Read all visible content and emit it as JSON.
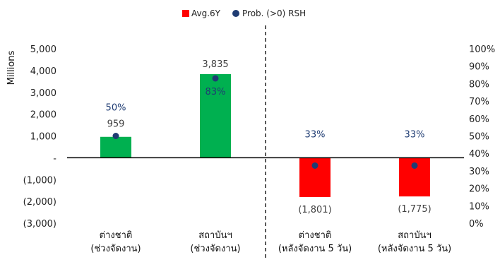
{
  "chart_data": {
    "type": "bar",
    "categories": [
      [
        "ต่างชาติ",
        "(ช่วงจัดงาน)"
      ],
      [
        "สถาบันฯ",
        "(ช่วงจัดงาน)"
      ],
      [
        "ต่างชาติ",
        "(หลังจัดงาน 5 วัน)"
      ],
      [
        "สถาบันฯ",
        "(หลังจัดงาน 5 วัน)"
      ]
    ],
    "series": [
      {
        "name": "Avg.6Y",
        "kind": "bar",
        "axis": "left",
        "values": [
          959,
          3835,
          -1801,
          -1775
        ],
        "labels": [
          "959",
          "3,835",
          "(1,801)",
          "(1,775)"
        ]
      },
      {
        "name": "Prob. (>0) RSH",
        "kind": "point",
        "axis": "right",
        "values": [
          0.5,
          0.83,
          0.33,
          0.33
        ],
        "labels": [
          "50%",
          "83%",
          "33%",
          "33%"
        ]
      }
    ],
    "ylabel": "Millions",
    "ylim": [
      -3000,
      5000
    ],
    "yticks": [
      5000,
      4000,
      3000,
      2000,
      1000,
      0,
      -1000,
      -2000,
      -3000
    ],
    "ytick_labels": [
      "5,000",
      "4,000",
      "3,000",
      "2,000",
      "1,000",
      "-",
      "(1,000)",
      "(2,000)",
      "(3,000)"
    ],
    "y2lim": [
      0,
      1
    ],
    "y2ticks": [
      1,
      0.9,
      0.8,
      0.7,
      0.6,
      0.5,
      0.4,
      0.3,
      0.2,
      0.1,
      0
    ],
    "y2tick_labels": [
      "100%",
      "90%",
      "80%",
      "70%",
      "60%",
      "50%",
      "40%",
      "30%",
      "20%",
      "10%",
      "0%"
    ],
    "legend_position": "top-center",
    "grid": false,
    "divider": "dashed line between second and third category"
  },
  "colors": {
    "bars": [
      "#00b050",
      "#00b050",
      "#ff0000",
      "#ff0000"
    ],
    "points": "#1f3c73",
    "legend_bar": "#ff0000",
    "legend_point": "#1f3c73",
    "axis": "#000000",
    "divider": "#000000"
  }
}
